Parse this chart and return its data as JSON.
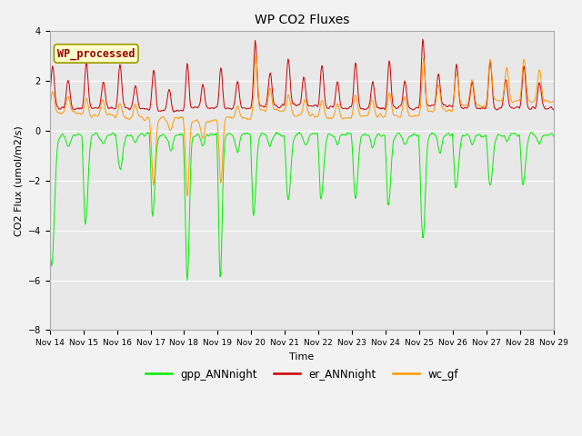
{
  "title": "WP CO2 Fluxes",
  "xlabel": "Time",
  "ylabel": "CO2 Flux (umol/m2/s)",
  "ylim": [
    -8,
    4
  ],
  "yticks": [
    -8,
    -6,
    -4,
    -2,
    0,
    2,
    4
  ],
  "plot_bg": "#e8e8e8",
  "fig_bg": "#f2f2f2",
  "line_colors": {
    "gpp": "#00ee00",
    "er": "#cc0000",
    "wc": "#ff9900"
  },
  "legend_labels": [
    "gpp_ANNnight",
    "er_ANNnight",
    "wc_gf"
  ],
  "annotation_text": "WP_processed",
  "annotation_color": "#990000",
  "annotation_bg": "#ffffcc",
  "annotation_edge": "#999900",
  "xtick_labels": [
    "Nov 14",
    "Nov 15",
    "Nov 16",
    "Nov 17",
    "Nov 18",
    "Nov 19",
    "Nov 20",
    "Nov 21",
    "Nov 22",
    "Nov 23",
    "Nov 24",
    "Nov 25",
    "Nov 26",
    "Nov 27",
    "Nov 28",
    "Nov 29"
  ],
  "n_points": 720,
  "seed": 42
}
